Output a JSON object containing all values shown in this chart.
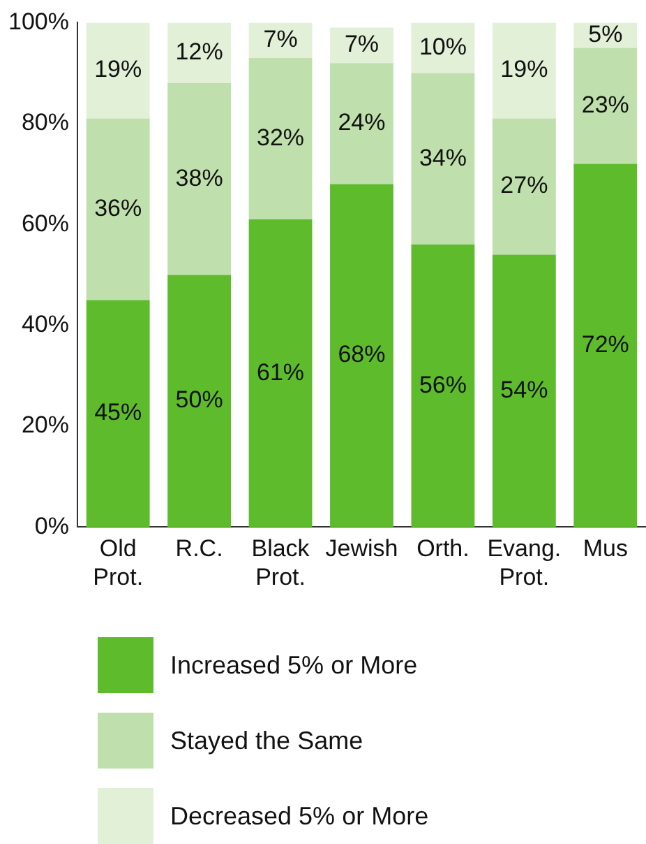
{
  "chart_data": {
    "type": "bar",
    "stacked": true,
    "categories": [
      "Old Prot.",
      "R.C.",
      "Black Prot.",
      "Jewish",
      "Orth.",
      "Evang. Prot.",
      "Mus"
    ],
    "series": [
      {
        "name": "Increased 5% or More",
        "color": "#5dbb2c",
        "values": [
          45,
          50,
          61,
          68,
          56,
          54,
          72
        ],
        "value_labels": [
          "45%",
          "50%",
          "61%",
          "68%",
          "56%",
          "54%",
          "72%"
        ]
      },
      {
        "name": "Stayed the Same",
        "color": "#bfe0ad",
        "values": [
          36,
          38,
          32,
          24,
          34,
          27,
          23
        ],
        "value_labels": [
          "36%",
          "38%",
          "32%",
          "24%",
          "34%",
          "27%",
          "23%"
        ]
      },
      {
        "name": "Decreased 5% or More",
        "color": "#e3f0d8",
        "values": [
          19,
          12,
          7,
          7,
          10,
          19,
          5
        ],
        "value_labels": [
          "19%",
          "12%",
          "7%",
          "7%",
          "10%",
          "19%",
          "5%"
        ]
      }
    ],
    "ylim": [
      0,
      100
    ],
    "yticks": [
      {
        "value": 0,
        "label": "0%"
      },
      {
        "value": 20,
        "label": "20%"
      },
      {
        "value": 40,
        "label": "40%"
      },
      {
        "value": 60,
        "label": "60%"
      },
      {
        "value": 80,
        "label": "80%"
      },
      {
        "value": 100,
        "label": "100%"
      }
    ],
    "grid": false,
    "legend": "bottom"
  }
}
